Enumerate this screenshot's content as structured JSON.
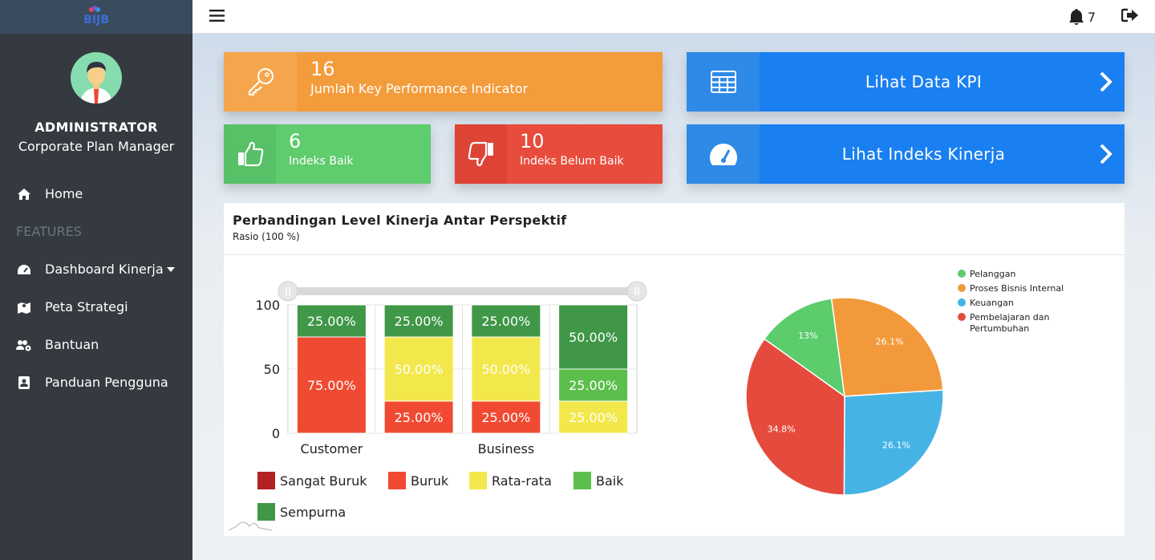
{
  "app": {
    "logo_text": "BIJB"
  },
  "user": {
    "name": "ADMINISTRATOR",
    "role": "Corporate Plan Manager"
  },
  "sidebar": {
    "items": [
      {
        "label": "Home",
        "icon": "home-icon"
      },
      {
        "section": "FEATURES"
      },
      {
        "label": "Dashboard Kinerja",
        "icon": "tachometer-icon"
      },
      {
        "label": "Peta Strategi",
        "icon": "map-icon"
      },
      {
        "label": "Bantuan",
        "icon": "users-cog-icon"
      },
      {
        "label": "Panduan Pengguna",
        "icon": "id-card-icon"
      }
    ]
  },
  "topbar": {
    "notification_count": "7"
  },
  "cards": {
    "kpi": {
      "number": "16",
      "label": "Jumlah Key Performance Indicator",
      "color": "#f39c3c"
    },
    "baik": {
      "number": "6",
      "label": "Indeks Baik",
      "color": "#5fcc6d"
    },
    "belum_baik": {
      "number": "10",
      "label": "Indeks Belum Baik",
      "color": "#e74c3c"
    },
    "lihat_kpi": {
      "label": "Lihat Data KPI",
      "color": "#1a7ff0"
    },
    "lihat_indeks": {
      "label": "Lihat Indeks Kinerja",
      "color": "#1a7ff0"
    }
  },
  "panel": {
    "title": "Perbandingan Level Kinerja Antar Perspektif",
    "subtitle": "Rasio (100 %)"
  },
  "chart_data": [
    {
      "type": "bar",
      "stacked": true,
      "categories": [
        "Customer",
        "",
        "Business",
        ""
      ],
      "x_tick_labels": [
        "Customer",
        "Business"
      ],
      "y_ticks": [
        "100",
        "50",
        "0"
      ],
      "ylim": [
        0,
        100
      ],
      "grid": true,
      "series": [
        {
          "name": "Sangat Buruk",
          "color": "#b22222",
          "values": [
            0,
            0,
            0,
            0
          ]
        },
        {
          "name": "Buruk",
          "color": "#f04a32",
          "values": [
            75,
            25,
            25,
            0
          ]
        },
        {
          "name": "Rata-rata",
          "color": "#f2e84c",
          "values": [
            0,
            50,
            50,
            25
          ]
        },
        {
          "name": "Baik",
          "color": "#5cbf4c",
          "values": [
            0,
            0,
            0,
            25
          ]
        },
        {
          "name": "Sempurna",
          "color": "#3f9747",
          "values": [
            25,
            25,
            25,
            50
          ]
        }
      ],
      "data_labels": [
        [
          "",
          "75.00%",
          "",
          "",
          "25.00%"
        ],
        [
          "",
          "25.00%",
          "50.00%",
          "",
          "25.00%"
        ],
        [
          "",
          "25.00%",
          "50.00%",
          "",
          "25.00%"
        ],
        [
          "",
          "",
          "25.00%",
          "25.00%",
          "50.00%"
        ]
      ],
      "legend_position": "bottom"
    },
    {
      "type": "pie",
      "slices": [
        {
          "name": "Pelanggan",
          "value": 13,
          "label": "13%",
          "color": "#5ccc6d"
        },
        {
          "name": "Proses Bisnis Internal",
          "value": 26.1,
          "label": "26.1%",
          "color": "#f29a3b"
        },
        {
          "name": "Keuangan",
          "value": 26.1,
          "label": "26.1%",
          "color": "#45b4e5"
        },
        {
          "name": "Pembelajaran dan Pertumbuhan",
          "value": 34.8,
          "label": "34.8%",
          "color": "#e54b3c"
        }
      ],
      "legend_position": "top-right"
    }
  ]
}
